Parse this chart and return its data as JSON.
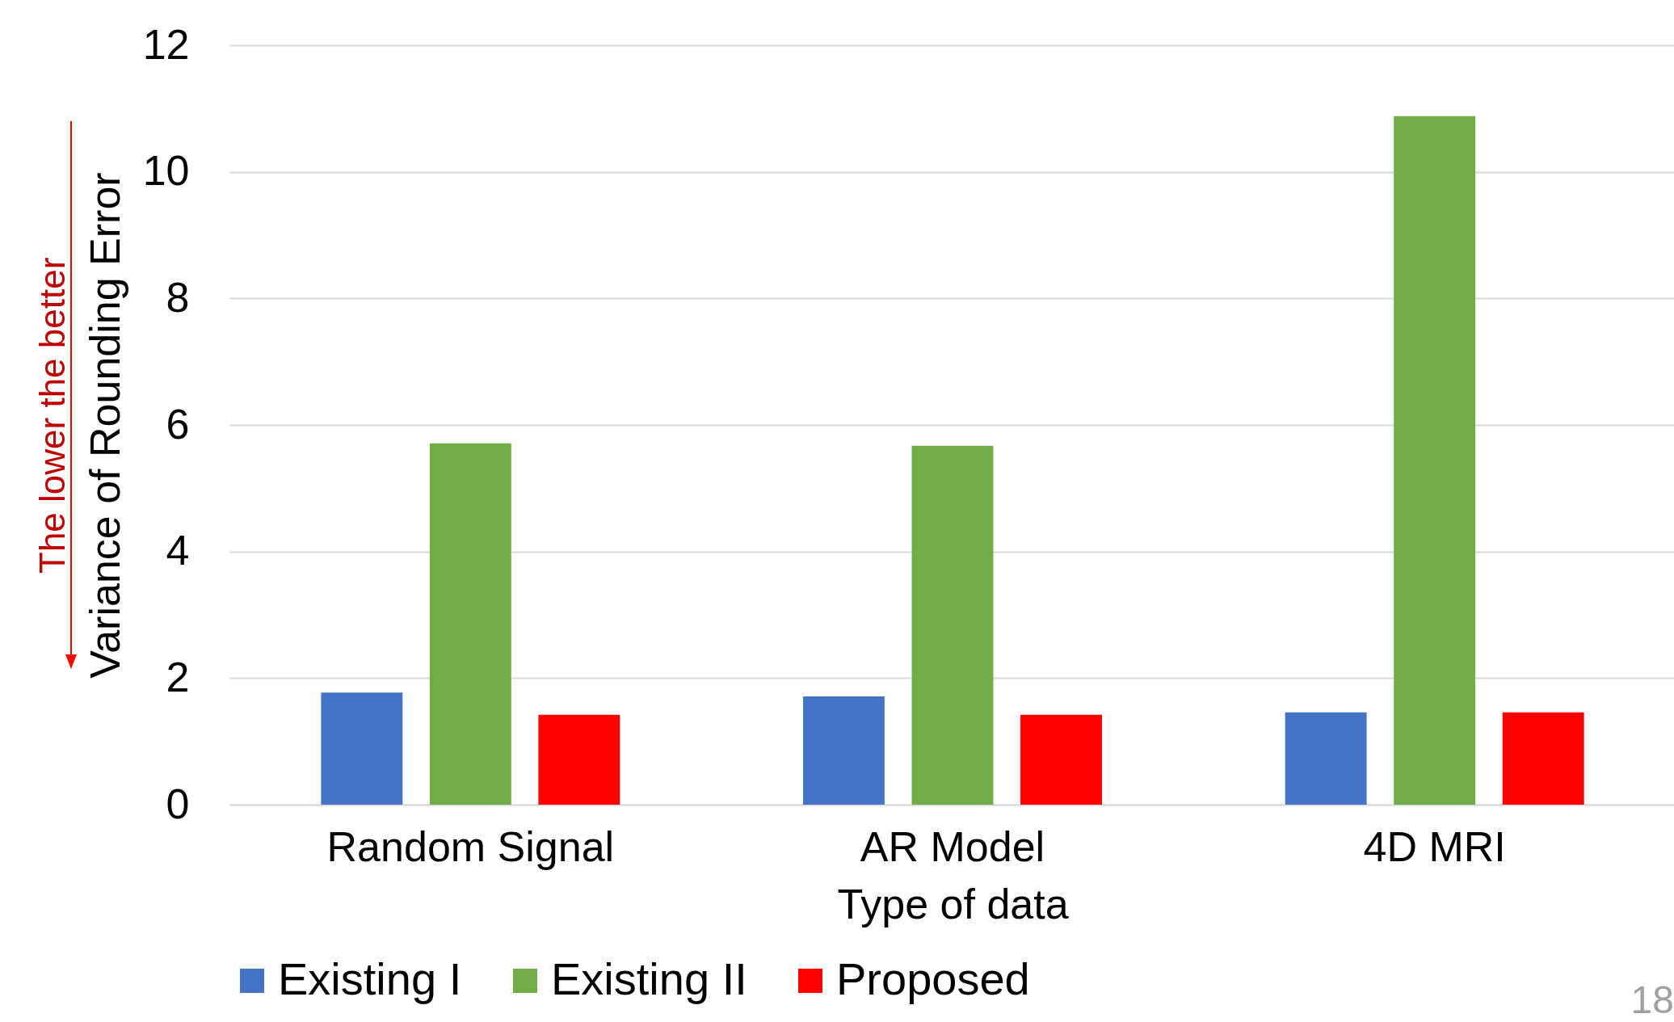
{
  "chart_data": {
    "type": "bar",
    "xlabel": "Type of data",
    "ylabel": "Variance of Rounding Error",
    "categories": [
      "Random Signal",
      "AR Model",
      "4D MRI"
    ],
    "series": [
      {
        "name": "Existing I",
        "color": "#4472c4",
        "values": [
          1.77,
          1.71,
          1.46
        ]
      },
      {
        "name": "Existing II",
        "color": "#70ad47",
        "values": [
          5.71,
          5.67,
          10.88
        ]
      },
      {
        "name": "Proposed",
        "color": "#ff0000",
        "values": [
          1.42,
          1.42,
          1.46
        ]
      }
    ],
    "ylim": [
      0,
      12
    ],
    "yticks": [
      0,
      2,
      4,
      6,
      8,
      10,
      12
    ],
    "grid": "y",
    "legend": "bottom",
    "annotations": [
      "The lower the better",
      "18"
    ]
  }
}
